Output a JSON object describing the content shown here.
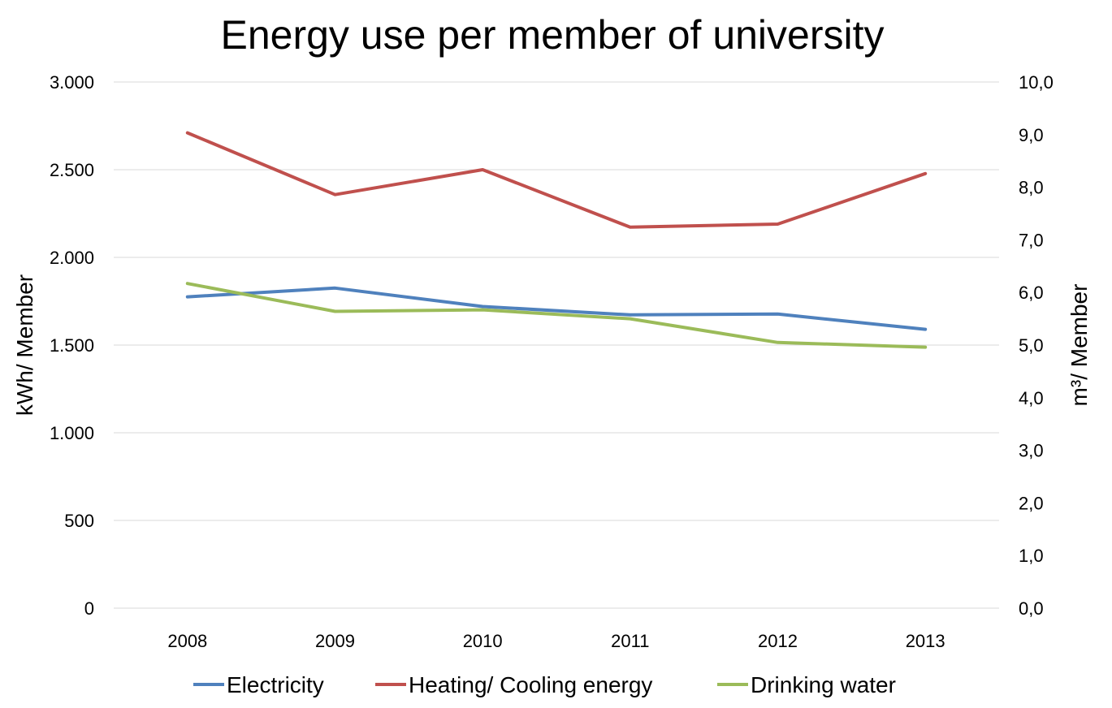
{
  "chart_data": {
    "type": "line",
    "title": "Energy use per member of university",
    "categories": [
      "2008",
      "2009",
      "2010",
      "2011",
      "2012",
      "2013"
    ],
    "y_left": {
      "label": "kWh/ Member",
      "range": [
        0,
        3000
      ],
      "ticks": [
        0,
        500,
        1000,
        1500,
        2000,
        2500,
        3000
      ],
      "tick_labels": [
        "0",
        "500",
        "1.000",
        "1.500",
        "2.000",
        "2.500",
        "3.000"
      ]
    },
    "y_right": {
      "label": "m³/ Member",
      "range": [
        0,
        10
      ],
      "ticks": [
        0,
        1,
        2,
        3,
        4,
        5,
        6,
        7,
        8,
        9,
        10
      ],
      "tick_labels": [
        "0,0",
        "1,0",
        "2,0",
        "3,0",
        "4,0",
        "5,0",
        "6,0",
        "7,0",
        "8,0",
        "9,0",
        "10,0"
      ]
    },
    "grid": true,
    "legend_position": "bottom",
    "series": [
      {
        "name": "Electricity",
        "axis": "left",
        "color": "#4f81bd",
        "values": [
          1775,
          1825,
          1720,
          1672,
          1677,
          1590
        ]
      },
      {
        "name": "Heating/ Cooling energy",
        "axis": "left",
        "color": "#c0504d",
        "values": [
          2710,
          2358,
          2500,
          2172,
          2190,
          2478
        ]
      },
      {
        "name": "Drinking water",
        "axis": "right",
        "color": "#9bbb59",
        "values": [
          6.17,
          5.64,
          5.67,
          5.5,
          5.05,
          4.96
        ]
      }
    ]
  }
}
